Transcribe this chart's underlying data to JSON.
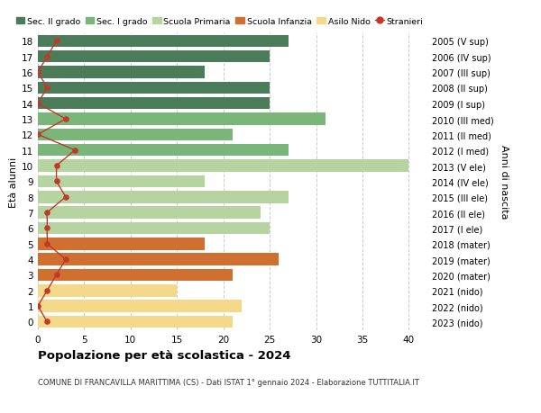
{
  "ages": [
    18,
    17,
    16,
    15,
    14,
    13,
    12,
    11,
    10,
    9,
    8,
    7,
    6,
    5,
    4,
    3,
    2,
    1,
    0
  ],
  "right_labels": [
    "2005 (V sup)",
    "2006 (IV sup)",
    "2007 (III sup)",
    "2008 (II sup)",
    "2009 (I sup)",
    "2010 (III med)",
    "2011 (II med)",
    "2012 (I med)",
    "2013 (V ele)",
    "2014 (IV ele)",
    "2015 (III ele)",
    "2016 (II ele)",
    "2017 (I ele)",
    "2018 (mater)",
    "2019 (mater)",
    "2020 (mater)",
    "2021 (nido)",
    "2022 (nido)",
    "2023 (nido)"
  ],
  "bar_values": [
    27,
    25,
    18,
    25,
    25,
    31,
    21,
    27,
    40,
    18,
    27,
    24,
    25,
    18,
    26,
    21,
    15,
    22,
    21
  ],
  "bar_colors": [
    "#4a7c59",
    "#4a7c59",
    "#4a7c59",
    "#4a7c59",
    "#4a7c59",
    "#7ab57a",
    "#7ab57a",
    "#7ab57a",
    "#b5d4a0",
    "#b5d4a0",
    "#b5d4a0",
    "#b5d4a0",
    "#b5d4a0",
    "#d07030",
    "#d07030",
    "#d07030",
    "#f5d98b",
    "#f5d98b",
    "#f5d98b"
  ],
  "stranieri_values": [
    2,
    1,
    0,
    1,
    0,
    3,
    0,
    4,
    2,
    2,
    3,
    1,
    1,
    1,
    3,
    2,
    1,
    0,
    1
  ],
  "legend_labels": [
    "Sec. II grado",
    "Sec. I grado",
    "Scuola Primaria",
    "Scuola Infanzia",
    "Asilo Nido",
    "Stranieri"
  ],
  "legend_colors": [
    "#4a7c59",
    "#7ab57a",
    "#b5d4a0",
    "#d07030",
    "#f5d98b",
    "#c0392b"
  ],
  "title": "Popolazione per età scolastica - 2024",
  "subtitle": "COMUNE DI FRANCAVILLA MARITTIMA (CS) - Dati ISTAT 1° gennaio 2024 - Elaborazione TUTTITALIA.IT",
  "ylabel_left": "Età alunni",
  "ylabel_right": "Anni di nascita",
  "xlim": [
    0,
    42
  ],
  "xticks": [
    0,
    5,
    10,
    15,
    20,
    25,
    30,
    35,
    40
  ],
  "background_color": "#ffffff",
  "grid_color": "#cccccc",
  "stranieri_color": "#c0392b"
}
